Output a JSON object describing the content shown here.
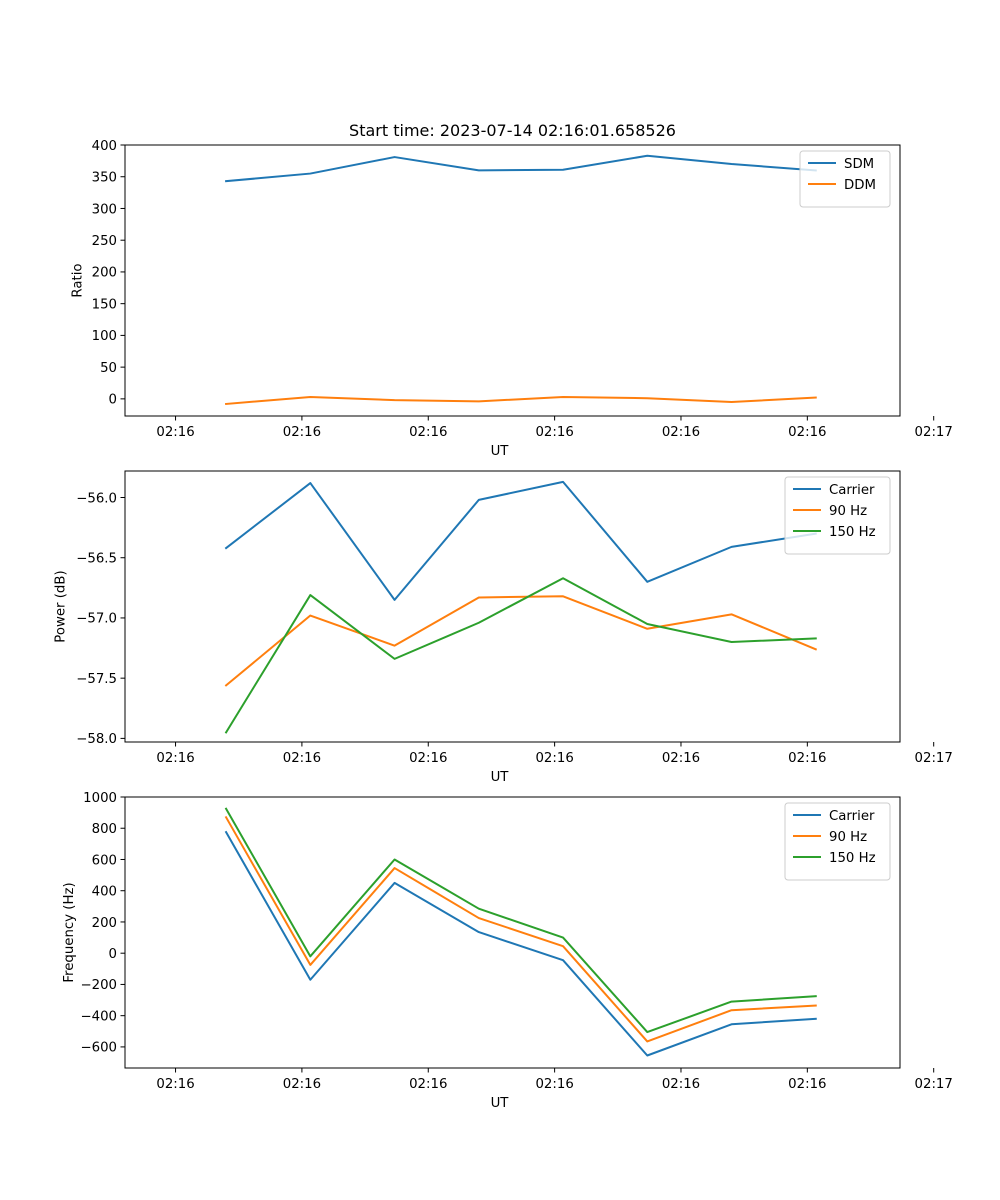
{
  "figure": {
    "title": "Start time: 2023-07-14 02:16:01.658526"
  },
  "chart_data": [
    {
      "type": "line",
      "title": "Start time: 2023-07-14 02:16:01.658526",
      "xlabel": "UT",
      "ylabel": "Ratio",
      "xlim": [
        -0.6,
        8.6
      ],
      "ylim": [
        -27,
        400
      ],
      "x": [
        0.6,
        1.6,
        2.6,
        3.6,
        4.6,
        5.6,
        6.6,
        7.6
      ],
      "xticks": [
        0,
        1.5,
        3,
        4.5,
        6,
        7.5,
        9
      ],
      "xtick_labels": [
        "02:16",
        "02:16",
        "02:16",
        "02:16",
        "02:16",
        "02:16",
        "02:17"
      ],
      "yticks": [
        0,
        50,
        100,
        150,
        200,
        250,
        300,
        350,
        400
      ],
      "ytick_labels": [
        "0",
        "50",
        "100",
        "150",
        "200",
        "250",
        "300",
        "350",
        "400"
      ],
      "legend": "top-right",
      "series": [
        {
          "name": "SDM",
          "color": "#1f77b4",
          "values": [
            343,
            355,
            381,
            360,
            361,
            383,
            370,
            360
          ]
        },
        {
          "name": "DDM",
          "color": "#ff7f0e",
          "values": [
            -8,
            3,
            -2,
            -4,
            3,
            1,
            -5,
            2
          ]
        }
      ]
    },
    {
      "type": "line",
      "xlabel": "UT",
      "ylabel": "Power (dB)",
      "xlim": [
        -0.6,
        8.6
      ],
      "ylim": [
        -58.03,
        -55.78
      ],
      "x": [
        0.6,
        1.6,
        2.6,
        3.6,
        4.6,
        5.6,
        6.6,
        7.6
      ],
      "xticks": [
        0,
        1.5,
        3,
        4.5,
        6,
        7.5,
        9
      ],
      "xtick_labels": [
        "02:16",
        "02:16",
        "02:16",
        "02:16",
        "02:16",
        "02:16",
        "02:17"
      ],
      "yticks": [
        -58.0,
        -57.5,
        -57.0,
        -56.5,
        -56.0
      ],
      "ytick_labels": [
        "−58.0",
        "−57.5",
        "−57.0",
        "−56.5",
        "−56.0"
      ],
      "legend": "top-right",
      "series": [
        {
          "name": "Carrier",
          "color": "#1f77b4",
          "values": [
            -56.42,
            -55.88,
            -56.85,
            -56.02,
            -55.87,
            -56.7,
            -56.41,
            -56.3
          ]
        },
        {
          "name": "90 Hz",
          "color": "#ff7f0e",
          "values": [
            -57.56,
            -56.98,
            -57.23,
            -56.83,
            -56.82,
            -57.09,
            -56.97,
            -57.26
          ]
        },
        {
          "name": "150 Hz",
          "color": "#2ca02c",
          "values": [
            -57.95,
            -56.81,
            -57.34,
            -57.04,
            -56.67,
            -57.05,
            -57.2,
            -57.17
          ]
        }
      ]
    },
    {
      "type": "line",
      "xlabel": "UT",
      "ylabel": "Frequency (Hz)",
      "xlim": [
        -0.6,
        8.6
      ],
      "ylim": [
        -735,
        1000
      ],
      "x": [
        0.6,
        1.6,
        2.6,
        3.6,
        4.6,
        5.6,
        6.6,
        7.6
      ],
      "xticks": [
        0,
        1.5,
        3,
        4.5,
        6,
        7.5,
        9
      ],
      "xtick_labels": [
        "02:16",
        "02:16",
        "02:16",
        "02:16",
        "02:16",
        "02:16",
        "02:17"
      ],
      "yticks": [
        -600,
        -400,
        -200,
        0,
        200,
        400,
        600,
        800,
        1000
      ],
      "ytick_labels": [
        "−600",
        "−400",
        "−200",
        "0",
        "200",
        "400",
        "600",
        "800",
        "1000"
      ],
      "legend": "top-right",
      "series": [
        {
          "name": "Carrier",
          "color": "#1f77b4",
          "values": [
            775,
            -170,
            450,
            135,
            -45,
            -655,
            -455,
            -420
          ]
        },
        {
          "name": "90 Hz",
          "color": "#ff7f0e",
          "values": [
            870,
            -75,
            545,
            225,
            45,
            -565,
            -365,
            -335
          ]
        },
        {
          "name": "150 Hz",
          "color": "#2ca02c",
          "values": [
            925,
            -20,
            600,
            285,
            100,
            -505,
            -310,
            -275
          ]
        }
      ]
    }
  ]
}
